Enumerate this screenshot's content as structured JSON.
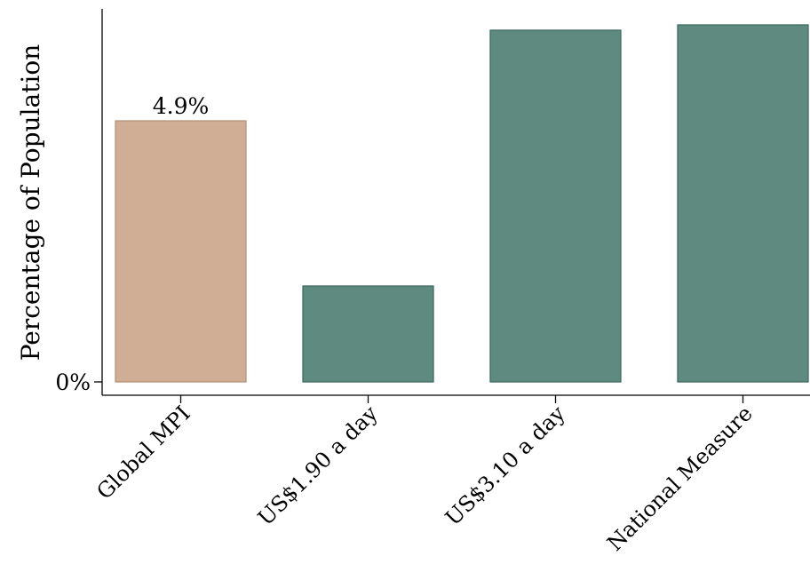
{
  "chart_data": {
    "type": "bar",
    "title": "",
    "xlabel": "",
    "ylabel": "Percentage of Population",
    "categories": [
      "Global MPI",
      "US$1.90 a day",
      "US$3.10 a day",
      "National Measure"
    ],
    "values": [
      4.9,
      1.8,
      6.6,
      6.7
    ],
    "data_labels": [
      "4.9%",
      "",
      "",
      ""
    ],
    "ylim": [
      0,
      7
    ],
    "yticks": [
      {
        "value": 0,
        "label": "0%"
      }
    ],
    "colors": [
      "#cfae95",
      "#5f8a80",
      "#5f8a80",
      "#5f8a80"
    ],
    "edge_colors": [
      "#b89478",
      "#3f6b61",
      "#3f6b61",
      "#3f6b61"
    ],
    "grid": false,
    "legend": "none"
  }
}
